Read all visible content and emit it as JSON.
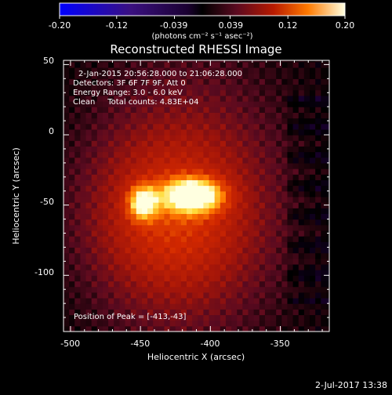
{
  "chart_data": {
    "type": "heatmap",
    "title": "Reconstructed RHESSI Image",
    "xlabel": "Heliocentric X (arcsec)",
    "ylabel": "Heliocentric Y (arcsec)",
    "xlim": [
      -505,
      -315
    ],
    "ylim": [
      -140,
      53
    ],
    "xticks": [
      -500,
      -450,
      -400,
      -350
    ],
    "yticks": [
      50,
      0,
      -50,
      -100
    ],
    "colorbar": {
      "label": "(photons cm⁻² s⁻¹ asec⁻²)",
      "ticks": [
        "-0.20",
        "-0.12",
        "-0.039",
        "0.039",
        "0.12",
        "0.20"
      ],
      "range": [
        -0.2,
        0.2
      ]
    },
    "annotations": [
      "2-Jan-2015 20:56:28.000 to 21:06:28.000",
      "Detectors: 3F 6F 7F 9F, Att 0",
      "Energy Range: 3.0 - 6.0 keV",
      "Clean     Total counts: 4.83E+04"
    ],
    "peak_label": "Position of Peak = [-413,-43]",
    "sources": [
      {
        "x": -413,
        "y": -43,
        "peak": 0.2,
        "sx": 14,
        "sy": 8
      },
      {
        "x": -448,
        "y": -48,
        "peak": 0.15,
        "sx": 7,
        "sy": 8
      },
      {
        "x": -430,
        "y": -60,
        "peak": 0.06,
        "sx": 40,
        "sy": 40
      }
    ],
    "background_level": 0.05
  },
  "footer": {
    "timestamp": "2-Jul-2017 13:38"
  }
}
